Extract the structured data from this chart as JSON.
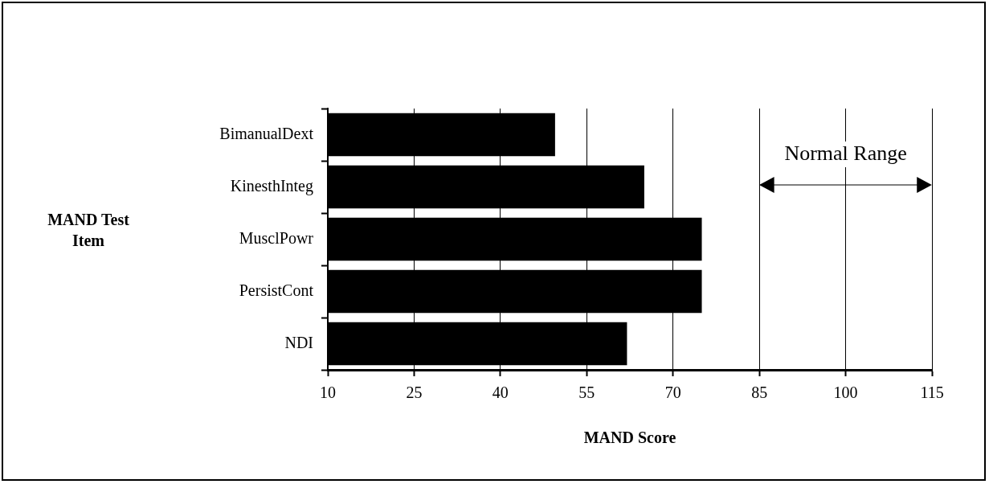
{
  "chart_data": {
    "type": "bar",
    "orientation": "horizontal",
    "categories": [
      "BimanualDext",
      "KinesthInteg",
      "MusclPowr",
      "PersistCont",
      "NDI"
    ],
    "values": [
      49.5,
      65,
      75,
      75,
      62
    ],
    "color": "#000000",
    "xlabel": "MAND Score",
    "xlim": [
      10,
      115
    ],
    "xticks": [
      10,
      25,
      40,
      55,
      70,
      85,
      100,
      115
    ],
    "annotations": [
      "MAND Test Item",
      "Normal Range"
    ],
    "grid": "x",
    "legend": false
  }
}
